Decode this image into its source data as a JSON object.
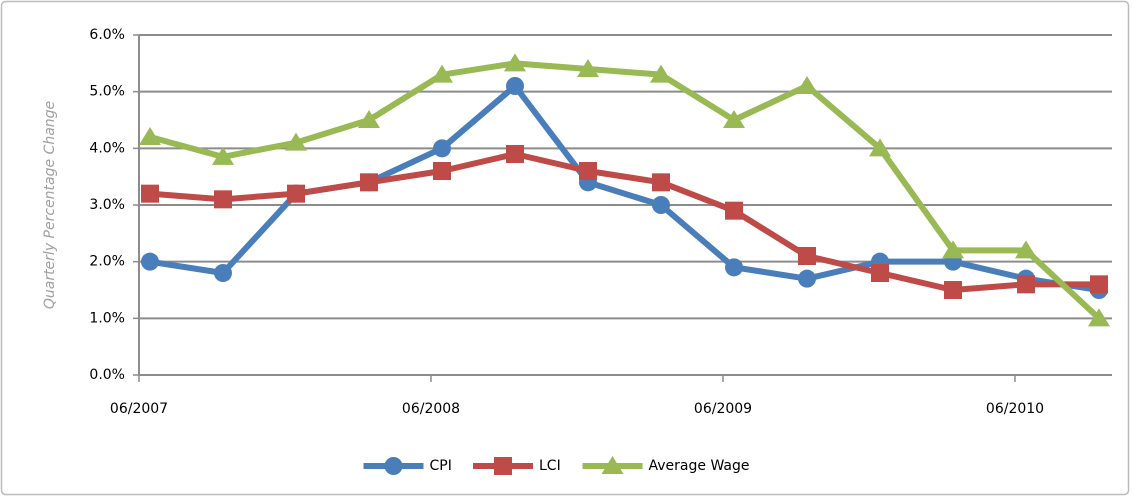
{
  "chart_data": {
    "type": "line",
    "y_label": "Quarterly Percentage Change",
    "categories": [
      "06/2007",
      null,
      null,
      null,
      "06/2008",
      null,
      null,
      null,
      "06/2009",
      null,
      null,
      null,
      "06/2010",
      null
    ],
    "series": [
      {
        "name": "CPI",
        "color": "#4a7ebb",
        "marker": "circle",
        "values": [
          2.0,
          1.8,
          3.2,
          3.4,
          4.0,
          5.1,
          3.4,
          3.0,
          1.9,
          1.7,
          2.0,
          2.0,
          1.7,
          1.5
        ]
      },
      {
        "name": "LCI",
        "color": "#be4b48",
        "marker": "square",
        "values": [
          3.2,
          3.1,
          3.2,
          3.4,
          3.6,
          3.9,
          3.6,
          3.4,
          2.9,
          2.1,
          1.8,
          1.5,
          1.6,
          1.6
        ]
      },
      {
        "name": "Average Wage",
        "color": "#98b954",
        "marker": "triangle",
        "values": [
          4.2,
          3.85,
          4.1,
          4.5,
          5.3,
          5.5,
          5.4,
          5.3,
          4.5,
          5.1,
          4.0,
          2.2,
          2.2,
          1.0
        ]
      }
    ],
    "ylim": [
      0,
      6
    ],
    "yticks": [
      {
        "value": 0,
        "label": "0.0%"
      },
      {
        "value": 1,
        "label": "1.0%"
      },
      {
        "value": 2,
        "label": "2.0%"
      },
      {
        "value": 3,
        "label": "3.0%"
      },
      {
        "value": 4,
        "label": "4.0%"
      },
      {
        "value": 5,
        "label": "5.0%"
      },
      {
        "value": 6,
        "label": "6.0%"
      }
    ],
    "grid": true,
    "legend": "bottom"
  }
}
